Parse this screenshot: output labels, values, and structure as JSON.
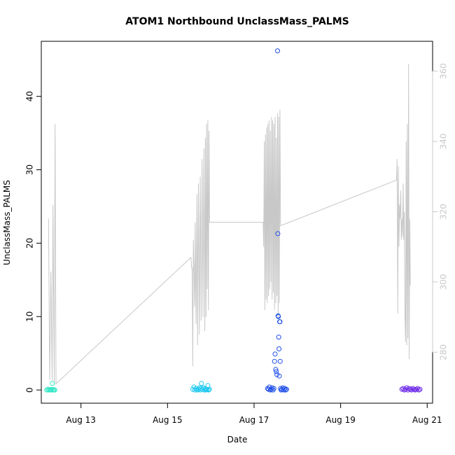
{
  "chart_data": {
    "type": "scatter",
    "title": "ATOM1 Northbound UnclassMass_PALMS",
    "xlabel": "Date",
    "ylabel": "UnclassMass_PALMS",
    "xlim": [
      "2016-08-12T02:00",
      "2016-08-21T03:00"
    ],
    "ylim": [
      -1.8,
      47.5
    ],
    "y2lim": [
      265.5,
      368.5
    ],
    "x_ticks": [
      {
        "date": "2016-08-13T00:00",
        "label": "Aug 13"
      },
      {
        "date": "2016-08-15T00:00",
        "label": "Aug 15"
      },
      {
        "date": "2016-08-17T00:00",
        "label": "Aug 17"
      },
      {
        "date": "2016-08-19T00:00",
        "label": "Aug 19"
      },
      {
        "date": "2016-08-21T00:00",
        "label": "Aug 21"
      }
    ],
    "y_ticks": [
      0,
      10,
      20,
      30,
      40
    ],
    "y2_ticks": [
      280,
      300,
      320,
      340,
      360
    ],
    "grid": false,
    "colors": {
      "line": "#c8c8c8",
      "right_axis": "#c8c8c8",
      "axis": "#000000"
    },
    "series": [
      {
        "color": "#2ee6c4",
        "points": [
          {
            "x": "2016-08-12T05:00",
            "y": 0.0
          },
          {
            "x": "2016-08-12T05:40",
            "y": 0.1
          },
          {
            "x": "2016-08-12T06:15",
            "y": 0.0
          },
          {
            "x": "2016-08-12T06:50",
            "y": 0.05
          },
          {
            "x": "2016-08-12T07:20",
            "y": 0.0
          },
          {
            "x": "2016-08-12T07:50",
            "y": 0.1
          },
          {
            "x": "2016-08-12T08:10",
            "y": 0.9
          },
          {
            "x": "2016-08-12T08:30",
            "y": 0.0
          },
          {
            "x": "2016-08-12T09:00",
            "y": 0.05
          },
          {
            "x": "2016-08-12T09:30",
            "y": 0.0
          }
        ]
      },
      {
        "color": "#1ec8f0",
        "points": [
          {
            "x": "2016-08-15T14:00",
            "y": 0.1
          },
          {
            "x": "2016-08-15T14:40",
            "y": 0.4
          },
          {
            "x": "2016-08-15T15:10",
            "y": 0.0
          },
          {
            "x": "2016-08-15T15:50",
            "y": 0.2
          },
          {
            "x": "2016-08-15T16:30",
            "y": 0.0
          },
          {
            "x": "2016-08-15T17:10",
            "y": 0.1
          },
          {
            "x": "2016-08-15T17:40",
            "y": 0.3
          },
          {
            "x": "2016-08-15T18:10",
            "y": 0.0
          },
          {
            "x": "2016-08-15T18:30",
            "y": 0.2
          },
          {
            "x": "2016-08-15T18:50",
            "y": 0.9
          },
          {
            "x": "2016-08-15T19:20",
            "y": 0.1
          },
          {
            "x": "2016-08-15T19:50",
            "y": 0.3
          },
          {
            "x": "2016-08-15T20:20",
            "y": 0.0
          },
          {
            "x": "2016-08-15T20:50",
            "y": 0.2
          },
          {
            "x": "2016-08-15T21:10",
            "y": 0.0
          },
          {
            "x": "2016-08-15T21:30",
            "y": 0.1
          },
          {
            "x": "2016-08-15T22:00",
            "y": 0.05
          },
          {
            "x": "2016-08-15T22:20",
            "y": 0.6
          },
          {
            "x": "2016-08-15T22:50",
            "y": 0.0
          },
          {
            "x": "2016-08-15T23:10",
            "y": 0.1
          }
        ]
      },
      {
        "color": "#1f4fe8",
        "points": [
          {
            "x": "2016-08-17T07:30",
            "y": 0.2
          },
          {
            "x": "2016-08-17T08:00",
            "y": 0.1
          },
          {
            "x": "2016-08-17T08:30",
            "y": 0.4
          },
          {
            "x": "2016-08-17T09:00",
            "y": 0.0
          },
          {
            "x": "2016-08-17T09:30",
            "y": 0.1
          },
          {
            "x": "2016-08-17T10:00",
            "y": 0.3
          },
          {
            "x": "2016-08-17T10:30",
            "y": 0.0
          },
          {
            "x": "2016-08-17T11:00",
            "y": 0.2
          },
          {
            "x": "2016-08-17T11:20",
            "y": 3.9
          },
          {
            "x": "2016-08-17T11:40",
            "y": 4.9
          },
          {
            "x": "2016-08-17T12:00",
            "y": 2.8
          },
          {
            "x": "2016-08-17T12:20",
            "y": 2.5
          },
          {
            "x": "2016-08-17T12:40",
            "y": 2.1
          },
          {
            "x": "2016-08-17T13:00",
            "y": 46.2
          },
          {
            "x": "2016-08-17T13:10",
            "y": 21.3
          },
          {
            "x": "2016-08-17T13:20",
            "y": 10.1
          },
          {
            "x": "2016-08-17T13:30",
            "y": 10.0
          },
          {
            "x": "2016-08-17T13:40",
            "y": 7.2
          },
          {
            "x": "2016-08-17T13:50",
            "y": 5.6
          },
          {
            "x": "2016-08-17T14:00",
            "y": 1.9
          },
          {
            "x": "2016-08-17T14:10",
            "y": 9.3
          },
          {
            "x": "2016-08-17T14:20",
            "y": 9.3
          },
          {
            "x": "2016-08-17T14:30",
            "y": 3.9
          },
          {
            "x": "2016-08-17T14:40",
            "y": 0.2
          },
          {
            "x": "2016-08-17T15:00",
            "y": 0.0
          },
          {
            "x": "2016-08-17T15:30",
            "y": 0.1
          },
          {
            "x": "2016-08-17T16:00",
            "y": 0.3
          },
          {
            "x": "2016-08-17T16:30",
            "y": 0.0
          },
          {
            "x": "2016-08-17T17:00",
            "y": 0.2
          },
          {
            "x": "2016-08-17T17:30",
            "y": 0.0
          },
          {
            "x": "2016-08-17T18:00",
            "y": 0.1
          }
        ]
      },
      {
        "color": "#6e2ce8",
        "points": [
          {
            "x": "2016-08-20T10:00",
            "y": 0.1
          },
          {
            "x": "2016-08-20T10:40",
            "y": 0.2
          },
          {
            "x": "2016-08-20T11:20",
            "y": 0.0
          },
          {
            "x": "2016-08-20T12:00",
            "y": 0.1
          },
          {
            "x": "2016-08-20T12:40",
            "y": 0.3
          },
          {
            "x": "2016-08-20T13:20",
            "y": 0.0
          },
          {
            "x": "2016-08-20T14:00",
            "y": 0.2
          },
          {
            "x": "2016-08-20T14:40",
            "y": 0.1
          },
          {
            "x": "2016-08-20T15:20",
            "y": 0.0
          },
          {
            "x": "2016-08-20T16:00",
            "y": 0.2
          },
          {
            "x": "2016-08-20T16:40",
            "y": 0.1
          },
          {
            "x": "2016-08-20T17:20",
            "y": 0.0
          },
          {
            "x": "2016-08-20T18:00",
            "y": 0.1
          },
          {
            "x": "2016-08-20T18:40",
            "y": 0.2
          },
          {
            "x": "2016-08-20T19:20",
            "y": 0.0
          },
          {
            "x": "2016-08-20T20:00",
            "y": 0.1
          }
        ]
      }
    ],
    "line": {
      "color": "#c8c8c8",
      "points": [
        [
          "2016-08-12T06:00",
          318
        ],
        [
          "2016-08-12T06:40",
          272
        ],
        [
          "2016-08-12T07:20",
          303
        ],
        [
          "2016-08-12T08:00",
          272
        ],
        [
          "2016-08-12T08:30",
          322
        ],
        [
          "2016-08-12T09:10",
          271
        ],
        [
          "2016-08-12T09:40",
          345
        ],
        [
          "2016-08-12T10:10",
          271
        ],
        [
          "2016-08-15T13:00",
          307
        ],
        [
          "2016-08-15T13:20",
          304
        ],
        [
          "2016-08-15T13:40",
          304
        ],
        [
          "2016-08-15T14:00",
          276
        ],
        [
          "2016-08-15T14:20",
          312
        ],
        [
          "2016-08-15T15:00",
          293
        ],
        [
          "2016-08-15T15:20",
          317
        ],
        [
          "2016-08-15T15:50",
          288
        ],
        [
          "2016-08-15T16:20",
          325
        ],
        [
          "2016-08-15T16:40",
          282
        ],
        [
          "2016-08-15T17:10",
          328
        ],
        [
          "2016-08-15T17:40",
          285
        ],
        [
          "2016-08-15T18:10",
          330
        ],
        [
          "2016-08-15T18:40",
          289
        ],
        [
          "2016-08-15T19:10",
          335
        ],
        [
          "2016-08-15T19:40",
          290
        ],
        [
          "2016-08-15T20:10",
          338
        ],
        [
          "2016-08-15T20:40",
          286
        ],
        [
          "2016-08-15T21:00",
          341
        ],
        [
          "2016-08-15T21:20",
          290
        ],
        [
          "2016-08-15T21:40",
          345
        ],
        [
          "2016-08-15T22:00",
          298
        ],
        [
          "2016-08-15T22:20",
          346
        ],
        [
          "2016-08-15T22:40",
          292
        ],
        [
          "2016-08-15T23:00",
          343
        ],
        [
          "2016-08-15T23:20",
          317
        ],
        [
          "2016-08-17T05:00",
          317
        ],
        [
          "2016-08-17T05:20",
          310
        ],
        [
          "2016-08-17T05:40",
          340
        ],
        [
          "2016-08-17T06:00",
          292
        ],
        [
          "2016-08-17T06:20",
          342
        ],
        [
          "2016-08-17T06:40",
          295
        ],
        [
          "2016-08-17T07:00",
          344
        ],
        [
          "2016-08-17T07:20",
          294
        ],
        [
          "2016-08-17T07:40",
          345
        ],
        [
          "2016-08-17T08:00",
          296
        ],
        [
          "2016-08-17T08:20",
          346
        ],
        [
          "2016-08-17T08:40",
          298
        ],
        [
          "2016-08-17T09:00",
          343
        ],
        [
          "2016-08-17T09:20",
          300
        ],
        [
          "2016-08-17T09:40",
          347
        ],
        [
          "2016-08-17T10:00",
          295
        ],
        [
          "2016-08-17T10:20",
          346
        ],
        [
          "2016-08-17T10:40",
          297
        ],
        [
          "2016-08-17T11:00",
          345
        ],
        [
          "2016-08-17T11:20",
          292
        ],
        [
          "2016-08-17T11:40",
          347
        ],
        [
          "2016-08-17T12:00",
          294
        ],
        [
          "2016-08-17T12:20",
          341
        ],
        [
          "2016-08-17T12:40",
          296
        ],
        [
          "2016-08-17T13:00",
          348
        ],
        [
          "2016-08-17T13:20",
          290
        ],
        [
          "2016-08-17T13:40",
          347
        ],
        [
          "2016-08-17T14:00",
          294
        ],
        [
          "2016-08-17T14:20",
          349
        ],
        [
          "2016-08-17T14:40",
          316
        ],
        [
          "2016-08-20T07:00",
          329
        ],
        [
          "2016-08-20T07:20",
          335
        ],
        [
          "2016-08-20T07:40",
          291
        ],
        [
          "2016-08-20T08:00",
          333
        ],
        [
          "2016-08-20T08:20",
          310
        ],
        [
          "2016-08-20T08:40",
          322
        ],
        [
          "2016-08-20T09:00",
          318
        ],
        [
          "2016-08-20T09:20",
          326
        ],
        [
          "2016-08-20T09:40",
          312
        ],
        [
          "2016-08-20T10:00",
          318
        ],
        [
          "2016-08-20T10:20",
          313
        ],
        [
          "2016-08-20T10:40",
          328
        ],
        [
          "2016-08-20T11:00",
          312
        ],
        [
          "2016-08-20T11:20",
          320
        ],
        [
          "2016-08-20T11:40",
          290
        ],
        [
          "2016-08-20T12:00",
          283
        ],
        [
          "2016-08-20T12:20",
          340
        ],
        [
          "2016-08-20T12:40",
          282
        ],
        [
          "2016-08-20T13:00",
          345
        ],
        [
          "2016-08-20T13:20",
          284
        ],
        [
          "2016-08-20T13:40",
          362
        ],
        [
          "2016-08-20T14:00",
          278
        ],
        [
          "2016-08-20T14:20",
          318
        ],
        [
          "2016-08-20T14:40",
          299
        ]
      ]
    }
  }
}
